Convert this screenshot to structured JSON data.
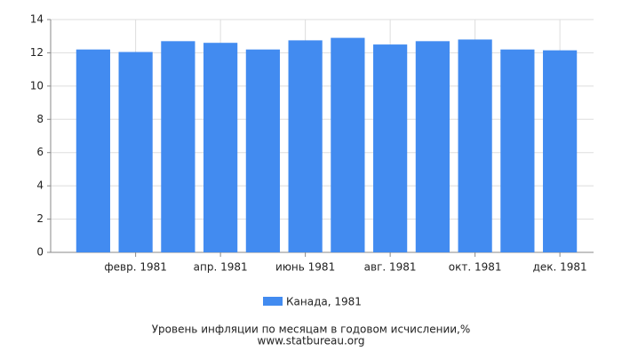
{
  "chart_data": {
    "type": "bar",
    "title": "Уровень инфляции по месяцам в годовом исчислении,%",
    "source": "www.statbureau.org",
    "categories": [
      null,
      "февр. 1981",
      null,
      "апр. 1981",
      null,
      "июнь 1981",
      null,
      "авг. 1981",
      null,
      "окт. 1981",
      null,
      "дек. 1981"
    ],
    "series": [
      {
        "name": "Канада, 1981",
        "color": "#428bf0",
        "values": [
          12.2,
          12.05,
          12.7,
          12.6,
          12.2,
          12.75,
          12.9,
          12.5,
          12.7,
          12.8,
          12.2,
          12.15
        ]
      }
    ],
    "ylim": [
      0,
      14
    ],
    "yticks": [
      0,
      2,
      4,
      6,
      8,
      10,
      12,
      14
    ],
    "grid": true
  }
}
